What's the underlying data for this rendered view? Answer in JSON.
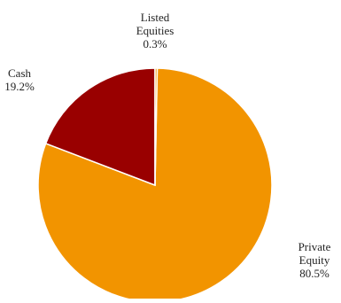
{
  "chart_data": {
    "type": "pie",
    "title": "",
    "start_angle_deg": 90,
    "direction": "clockwise",
    "slices": [
      {
        "name": "Private Equity",
        "label_lines": [
          "Private",
          "Equity"
        ],
        "value": 80.5,
        "value_label": "80.5%",
        "color": "#F29400"
      },
      {
        "name": "Cash",
        "label_lines": [
          "Cash"
        ],
        "value": 19.2,
        "value_label": "19.2%",
        "color": "#990000"
      },
      {
        "name": "Listed Equities",
        "label_lines": [
          "Listed",
          "Equities"
        ],
        "value": 0.3,
        "value_label": "0.3%",
        "color": "#F29400"
      }
    ]
  }
}
